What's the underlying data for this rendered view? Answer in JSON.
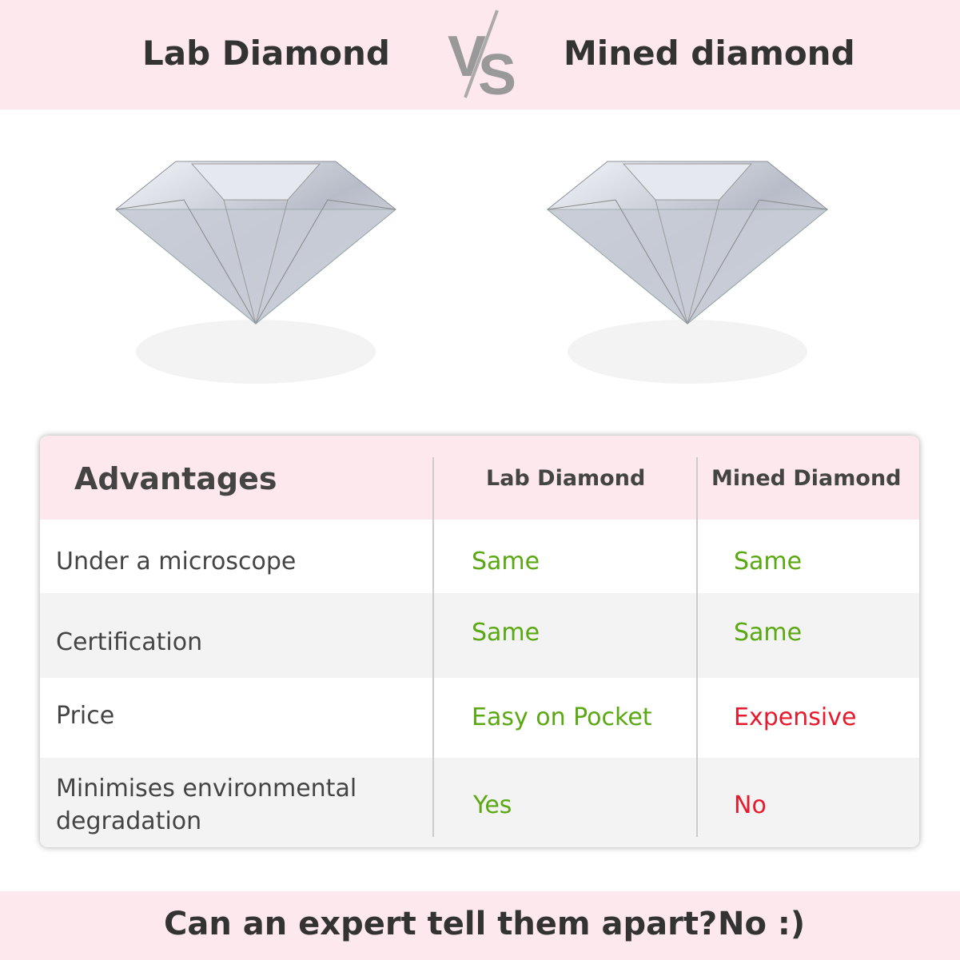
{
  "header": {
    "left_title": "Lab Diamond",
    "vs": "VS",
    "right_title": "Mined diamond"
  },
  "table": {
    "headers": [
      "Advantages",
      "Lab Diamond",
      "Mined Diamond"
    ],
    "rows": [
      {
        "label": "Under a microscope",
        "lab": "Same",
        "mined": "Same"
      },
      {
        "label": "Certification",
        "lab": "Same",
        "mined": "Same"
      },
      {
        "label": "Price",
        "lab": "Easy on Pocket",
        "mined": "Expensive"
      },
      {
        "label": "Minimises environmental degradation",
        "lab": "Yes",
        "mined": "No"
      }
    ]
  },
  "footer": {
    "question": "Can an expert tell them apart?",
    "answer": "No :)"
  },
  "colors": {
    "banner": "#fde9ed",
    "positive": "#5aa812",
    "negative": "#e8192c"
  }
}
